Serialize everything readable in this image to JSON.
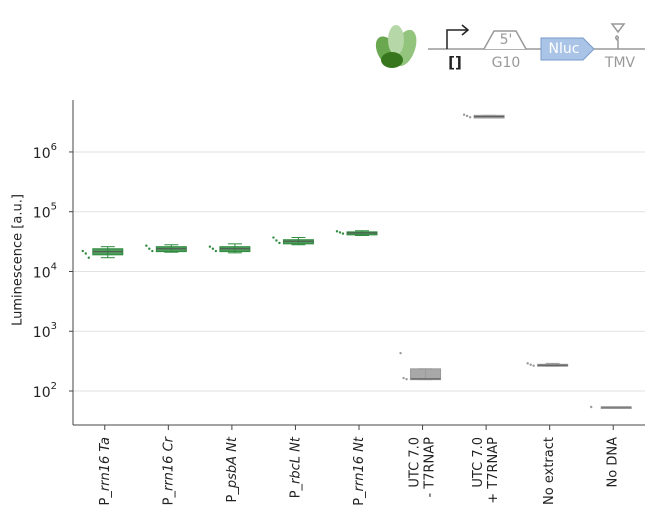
{
  "header": {
    "promoter": "[]",
    "utr": "5'",
    "utr_name": "G10",
    "gene": "Nluc",
    "terminator": "TMV"
  },
  "chart_data": {
    "type": "box",
    "ylabel": "Luminescence [a.u.]",
    "log_y": true,
    "grid": true,
    "ylim": [
      27,
      7400000
    ],
    "yticks": [
      {
        "value": 100,
        "label": "10",
        "exponent": "2"
      },
      {
        "value": 1000,
        "label": "10",
        "exponent": "3"
      },
      {
        "value": 10000,
        "label": "10",
        "exponent": "4"
      },
      {
        "value": 100000,
        "label": "10",
        "exponent": "5"
      },
      {
        "value": 1000000,
        "label": "10",
        "exponent": "6"
      }
    ],
    "categories": [
      [
        "P_rrn16 Ta"
      ],
      [
        "P_rrn16 Cr"
      ],
      [
        "P_psbA Nt"
      ],
      [
        "P_rbcL Nt"
      ],
      [
        "P_rrn16 Nt"
      ],
      [
        "UTC 7.0",
        "- T7RNAP"
      ],
      [
        "UTC 7.0",
        "+ T7RNAP"
      ],
      [
        "No extract"
      ],
      [
        "No DNA"
      ]
    ],
    "boxes": [
      {
        "min": 17000,
        "q1": 19000,
        "median": 21500,
        "q3": 24000,
        "max": 26000,
        "points": [
          22000,
          20000,
          17000
        ],
        "color": "#2e8b3e"
      },
      {
        "min": 21000,
        "q1": 21500,
        "median": 24000,
        "q3": 26000,
        "max": 28000,
        "points": [
          27000,
          24000,
          22000
        ],
        "color": "#2e8b3e"
      },
      {
        "min": 20500,
        "q1": 21500,
        "median": 24000,
        "q3": 26000,
        "max": 29000,
        "points": [
          26000,
          24000,
          22000
        ],
        "color": "#2e8b3e"
      },
      {
        "min": 28000,
        "q1": 29000,
        "median": 32000,
        "q3": 34000,
        "max": 37000,
        "points": [
          37000,
          33000,
          30000
        ],
        "color": "#2e8b3e"
      },
      {
        "min": 40000,
        "q1": 41000,
        "median": 44000,
        "q3": 46000,
        "max": 48000,
        "points": [
          47000,
          45000,
          43000
        ],
        "color": "#2e8b3e"
      },
      {
        "min": 155,
        "q1": 155,
        "median": 160,
        "q3": 235,
        "max": 235,
        "points": [
          430,
          165,
          158
        ],
        "color": "#999999"
      },
      {
        "min": 3700000,
        "q1": 3700000,
        "median": 3900000,
        "q3": 4100000,
        "max": 4100000,
        "points": [
          4200000,
          4000000,
          3800000
        ],
        "color": "#999999"
      },
      {
        "min": 260,
        "q1": 260,
        "median": 270,
        "q3": 280,
        "max": 290,
        "points": [
          290,
          275,
          265
        ],
        "color": "#999999"
      },
      {
        "min": 54,
        "q1": 54,
        "median": 54,
        "q3": 54,
        "max": 54,
        "points": [
          54
        ],
        "color": "#999999"
      }
    ]
  }
}
